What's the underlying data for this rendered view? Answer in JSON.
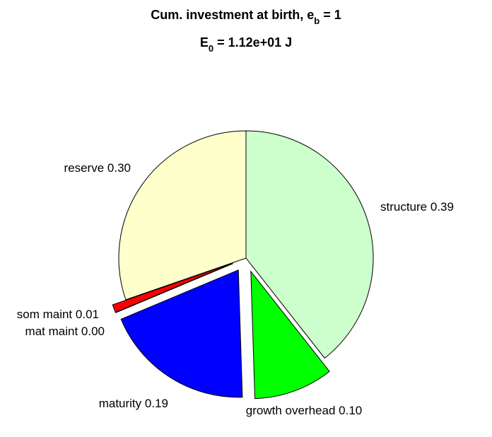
{
  "chart_data": {
    "type": "pie",
    "title": {
      "text": "Cum. investment at birth, e",
      "sub": "b",
      "rest": " = 1"
    },
    "subtitle": {
      "text": "E",
      "sub": "0",
      "rest": " = 1.12e+01 J"
    },
    "categories": [
      "structure",
      "growth overhead",
      "maturity",
      "mat maint",
      "som maint",
      "reserve"
    ],
    "values": [
      0.39,
      0.1,
      0.19,
      0.0,
      0.01,
      0.3
    ],
    "value_labels": [
      "0.39",
      "0.10",
      "0.19",
      "0.00",
      "0.01",
      "0.30"
    ],
    "colors": [
      "#ccffcc",
      "#00ff00",
      "#0000ff",
      "#a020f0",
      "#ff0000",
      "#ffffcc"
    ],
    "exploded": [
      false,
      true,
      true,
      true,
      true,
      false
    ]
  }
}
